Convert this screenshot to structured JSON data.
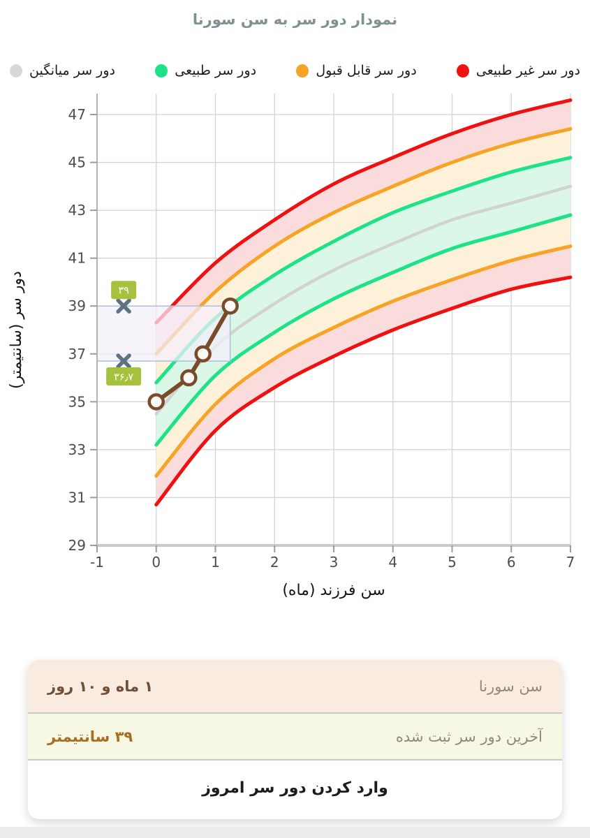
{
  "title": "نمودار دور سر به سن سورنا",
  "legend": {
    "items": [
      {
        "name": "abnormal",
        "label": "دور سر غیر طبیعی",
        "color": "#f01111"
      },
      {
        "name": "acceptable",
        "label": "دور سر قابل قبول",
        "color": "#f7a325"
      },
      {
        "name": "normal",
        "label": "دور سر طبیعی",
        "color": "#1ee287"
      },
      {
        "name": "mean",
        "label": "دور سر میانگین",
        "color": "#d8d8d8"
      }
    ]
  },
  "chart_data": {
    "type": "line",
    "title": "نمودار دور سر به سن سورنا",
    "xlabel": "سن فرزند (ماه)",
    "ylabel": "دور سر (سانتیمتر)",
    "xlim": [
      -1,
      7
    ],
    "ylim": [
      29,
      48
    ],
    "x_ticks": [
      -1,
      0,
      1,
      2,
      3,
      4,
      5,
      6,
      7
    ],
    "y_ticks": [
      29,
      31,
      33,
      35,
      37,
      39,
      41,
      43,
      45,
      47
    ],
    "grid": true,
    "legend_position": "top",
    "x": [
      0,
      1,
      2,
      3,
      4,
      5,
      6,
      7
    ],
    "series": [
      {
        "name": "upper-abnormal (+3SD)",
        "color": "#ef1111",
        "width": 5,
        "values": [
          38.3,
          40.8,
          42.6,
          44.1,
          45.2,
          46.2,
          47.0,
          47.6
        ]
      },
      {
        "name": "upper-acceptable (+2SD)",
        "color": "#f7a325",
        "width": 5,
        "values": [
          37.0,
          39.6,
          41.5,
          42.9,
          44.0,
          45.0,
          45.8,
          46.4
        ]
      },
      {
        "name": "upper-normal (+1SD)",
        "color": "#1ee287",
        "width": 5,
        "values": [
          35.8,
          38.5,
          40.3,
          41.7,
          42.9,
          43.8,
          44.6,
          45.2
        ]
      },
      {
        "name": "mean",
        "color": "#d2d2d2",
        "width": 4.5,
        "values": [
          34.5,
          37.3,
          39.1,
          40.5,
          41.6,
          42.6,
          43.3,
          44.0
        ]
      },
      {
        "name": "lower-normal (-1SD)",
        "color": "#1ee287",
        "width": 5,
        "values": [
          33.2,
          36.1,
          37.9,
          39.3,
          40.4,
          41.4,
          42.1,
          42.8
        ]
      },
      {
        "name": "lower-acceptable (-2SD)",
        "color": "#f7a325",
        "width": 5,
        "values": [
          31.9,
          34.9,
          36.8,
          38.1,
          39.2,
          40.1,
          40.9,
          41.5
        ]
      },
      {
        "name": "lower-abnormal (-3SD)",
        "color": "#ef1111",
        "width": 5,
        "values": [
          30.7,
          33.8,
          35.6,
          36.9,
          38.0,
          38.9,
          39.7,
          40.2
        ]
      }
    ],
    "bands": [
      {
        "upper": 0,
        "lower": 1,
        "fill": "#fbdcdc"
      },
      {
        "upper": 1,
        "lower": 2,
        "fill": "#fdf1da"
      },
      {
        "upper": 2,
        "lower": 4,
        "fill": "#daf7e8"
      },
      {
        "upper": 4,
        "lower": 5,
        "fill": "#fdf1da"
      },
      {
        "upper": 5,
        "lower": 6,
        "fill": "#fbdcdc"
      }
    ],
    "measurements": {
      "color": "#7a4b2b",
      "point_fill": "#fdfaf5",
      "points": [
        {
          "x": 0,
          "y": 35
        },
        {
          "x": 0.55,
          "y": 36
        },
        {
          "x": 0.79,
          "y": 37
        },
        {
          "x": 1.25,
          "y": 39
        }
      ]
    },
    "highlight": {
      "x0": -1,
      "x1": 1.25,
      "y0": 36.7,
      "y1": 39,
      "fill": "#f4eefa",
      "stroke": "#a9c3dc"
    },
    "annotations": [
      {
        "label": "۳۹",
        "value": 39,
        "marker_x": -0.55,
        "badge": "above"
      },
      {
        "label": "۳۶٫۷",
        "value": 36.7,
        "marker_x": -0.55,
        "badge": "below"
      }
    ],
    "marker_color": "#5d7383",
    "badge_color": "#a6c13d",
    "badge_text_color": "#ffffff"
  },
  "info_card": {
    "rows": [
      {
        "label": "سن سورنا",
        "value": "۱ ماه و ۱۰ روز",
        "bg": "#f9ebdf",
        "value_color": "#6f4f37"
      },
      {
        "label": "آخرین دور سر ثبت شده",
        "value": "۳۹ سانتیمتر",
        "bg": "#f6f8e3",
        "value_color": "#aa6b23"
      }
    ],
    "button_label": "وارد کردن دور سر امروز"
  }
}
